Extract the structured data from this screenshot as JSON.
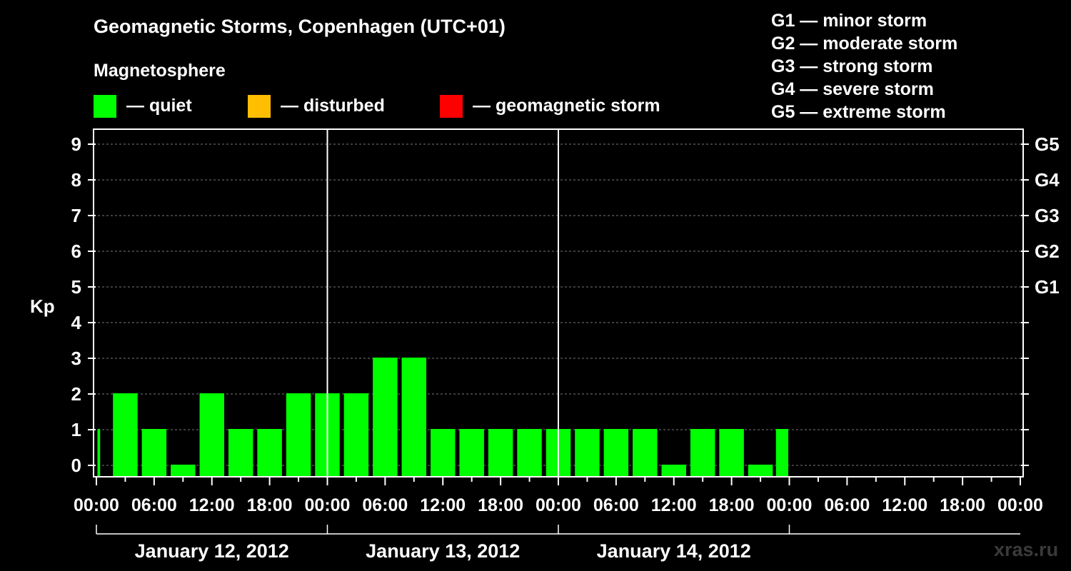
{
  "chart_data": {
    "type": "bar",
    "title": "Geomagnetic Storms, Copenhagen (UTC+01)",
    "subtitle": "Magnetosphere",
    "ylabel": "Kp",
    "ylim": [
      0,
      9
    ],
    "y_ticks": [
      "0",
      "1",
      "2",
      "3",
      "4",
      "5",
      "6",
      "7",
      "8",
      "9"
    ],
    "right_ticks": [
      {
        "kp": 5,
        "label": "G1"
      },
      {
        "kp": 6,
        "label": "G2"
      },
      {
        "kp": 7,
        "label": "G3"
      },
      {
        "kp": 8,
        "label": "G4"
      },
      {
        "kp": 9,
        "label": "G5"
      }
    ],
    "x_ticks": [
      "00:00",
      "06:00",
      "12:00",
      "18:00",
      "00:00",
      "06:00",
      "12:00",
      "18:00",
      "00:00",
      "06:00",
      "12:00",
      "18:00",
      "00:00",
      "06:00",
      "12:00",
      "18:00",
      "00:00"
    ],
    "days": [
      "January 12, 2012",
      "January 13, 2012",
      "January 14, 2012"
    ],
    "legend": [
      {
        "color": "#00ff00",
        "label": "— quiet"
      },
      {
        "color": "#ffbf00",
        "label": "— disturbed"
      },
      {
        "color": "#ff0000",
        "label": "— geomagnetic storm"
      }
    ],
    "storm_scale": [
      "G1 — minor storm",
      "G2 — moderate storm",
      "G3 — strong storm",
      "G4 — severe storm",
      "G5 — extreme storm"
    ],
    "grid": true,
    "bar_color": "#00ff00",
    "bars": [
      {
        "start": "2012-01-12 00:00",
        "end": "2012-01-12 00:30",
        "kp": 1
      },
      {
        "start": "2012-01-12 01:30",
        "end": "2012-01-12 04:30",
        "kp": 2
      },
      {
        "start": "2012-01-12 04:30",
        "end": "2012-01-12 07:30",
        "kp": 1
      },
      {
        "start": "2012-01-12 07:30",
        "end": "2012-01-12 10:30",
        "kp": 0
      },
      {
        "start": "2012-01-12 10:30",
        "end": "2012-01-12 13:30",
        "kp": 2
      },
      {
        "start": "2012-01-12 13:30",
        "end": "2012-01-12 16:30",
        "kp": 1
      },
      {
        "start": "2012-01-12 16:30",
        "end": "2012-01-12 19:30",
        "kp": 1
      },
      {
        "start": "2012-01-12 19:30",
        "end": "2012-01-12 22:30",
        "kp": 2
      },
      {
        "start": "2012-01-12 22:30",
        "end": "2012-01-13 01:30",
        "kp": 2
      },
      {
        "start": "2012-01-13 01:30",
        "end": "2012-01-13 04:30",
        "kp": 2
      },
      {
        "start": "2012-01-13 04:30",
        "end": "2012-01-13 07:30",
        "kp": 3
      },
      {
        "start": "2012-01-13 07:30",
        "end": "2012-01-13 10:30",
        "kp": 3
      },
      {
        "start": "2012-01-13 10:30",
        "end": "2012-01-13 13:30",
        "kp": 1
      },
      {
        "start": "2012-01-13 13:30",
        "end": "2012-01-13 16:30",
        "kp": 1
      },
      {
        "start": "2012-01-13 16:30",
        "end": "2012-01-13 19:30",
        "kp": 1
      },
      {
        "start": "2012-01-13 19:30",
        "end": "2012-01-13 22:30",
        "kp": 1
      },
      {
        "start": "2012-01-13 22:30",
        "end": "2012-01-14 01:30",
        "kp": 1
      },
      {
        "start": "2012-01-14 01:30",
        "end": "2012-01-14 04:30",
        "kp": 1
      },
      {
        "start": "2012-01-14 04:30",
        "end": "2012-01-14 07:30",
        "kp": 1
      },
      {
        "start": "2012-01-14 07:30",
        "end": "2012-01-14 10:30",
        "kp": 1
      },
      {
        "start": "2012-01-14 10:30",
        "end": "2012-01-14 13:30",
        "kp": 0
      },
      {
        "start": "2012-01-14 13:30",
        "end": "2012-01-14 16:30",
        "kp": 1
      },
      {
        "start": "2012-01-14 16:30",
        "end": "2012-01-14 19:30",
        "kp": 1
      },
      {
        "start": "2012-01-14 19:30",
        "end": "2012-01-14 22:30",
        "kp": 0
      },
      {
        "start": "2012-01-14 22:30",
        "end": "2012-01-15 00:00",
        "kp": 1
      }
    ]
  },
  "watermark": "xras.ru"
}
